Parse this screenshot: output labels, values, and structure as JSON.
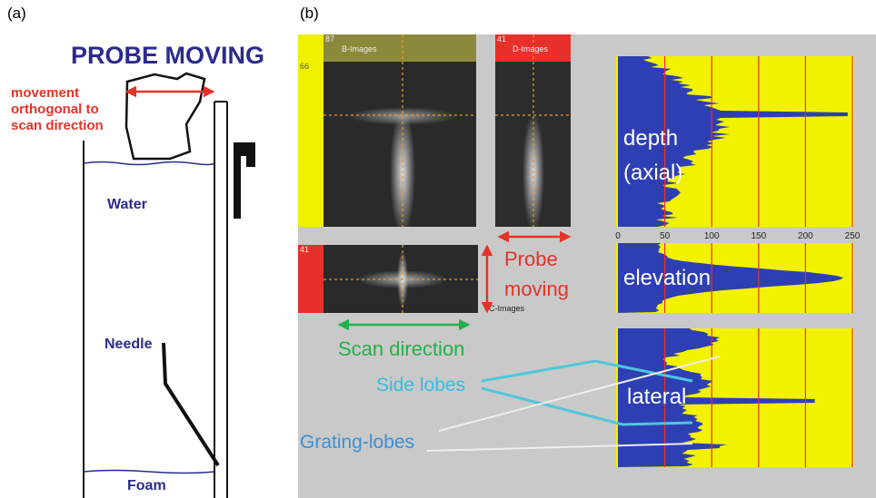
{
  "labels": {
    "panel_a": "(a)",
    "panel_b": "(b)"
  },
  "tank": {
    "title": "PROBE MOVING",
    "movement_note": [
      "movement",
      "orthogonal to",
      "scan direction"
    ],
    "water": "Water",
    "needle": "Needle",
    "foam": "Foam"
  },
  "images": {
    "b_images": "B-Images",
    "d_images": "D-Images",
    "c_images": "C-Images",
    "b_index": "87",
    "d_index": "41",
    "b_side_index": "66",
    "c_index": "41"
  },
  "annotations": {
    "probe_moving": [
      "Probe",
      "moving"
    ],
    "scan_direction": "Scan direction",
    "side_lobes": "Side lobes",
    "grating_lobes": "Grating-lobes"
  },
  "profiles": {
    "depth": [
      "depth",
      "(axial)"
    ],
    "elevation": "elevation",
    "lateral": "lateral",
    "axis_ticks": [
      0,
      50,
      100,
      150,
      200,
      250
    ]
  }
}
